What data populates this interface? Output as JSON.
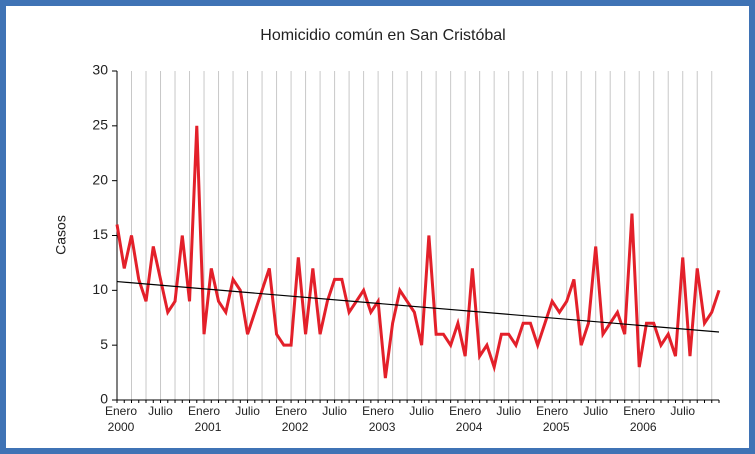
{
  "chart_data": {
    "type": "line",
    "title": "Homicidio común en San Cristóbal",
    "y_label": "Casos",
    "categories": [
      "Enero",
      null,
      null,
      null,
      null,
      null,
      "Julio",
      null,
      null,
      null,
      null,
      null,
      "Enero",
      null,
      null,
      null,
      null,
      null,
      "Julio",
      null,
      null,
      null,
      null,
      null,
      "Enero",
      null,
      null,
      null,
      null,
      null,
      "Julio",
      null,
      null,
      null,
      null,
      null,
      "Enero",
      null,
      null,
      null,
      null,
      null,
      "Julio",
      null,
      null,
      null,
      null,
      null,
      "Enero",
      null,
      null,
      null,
      null,
      null,
      "Julio",
      null,
      null,
      null,
      null,
      null,
      "Enero",
      null,
      null,
      null,
      null,
      null,
      "Julio",
      null,
      null,
      null,
      null,
      null,
      "Enero",
      null,
      null,
      null,
      null,
      null,
      "Julio",
      null,
      null,
      null,
      null,
      null
    ],
    "years": [
      "2000",
      "2001",
      "2002",
      "2003",
      "2004",
      "2005",
      "2006"
    ],
    "values": [
      16,
      12,
      15,
      11,
      9,
      14,
      11,
      8,
      9,
      15,
      9,
      25,
      6,
      12,
      9,
      8,
      11,
      10,
      6,
      8,
      10,
      12,
      6,
      5,
      5,
      13,
      6,
      12,
      6,
      9,
      11,
      11,
      8,
      9,
      10,
      8,
      9,
      2,
      7,
      10,
      9,
      8,
      5,
      15,
      6,
      6,
      5,
      7,
      4,
      12,
      4,
      5,
      3,
      6,
      6,
      5,
      7,
      7,
      5,
      7,
      9,
      8,
      9,
      11,
      5,
      7,
      14,
      6,
      7,
      8,
      6,
      17,
      3,
      7,
      7,
      5,
      6,
      4,
      13,
      4,
      12,
      7,
      8,
      10
    ],
    "color": "#e3202a",
    "trend_line": [
      10.8,
      6.2
    ],
    "ylim": [
      0,
      30
    ],
    "yticks": [
      0,
      5,
      10,
      15,
      20,
      25,
      30
    ],
    "grid": true
  }
}
